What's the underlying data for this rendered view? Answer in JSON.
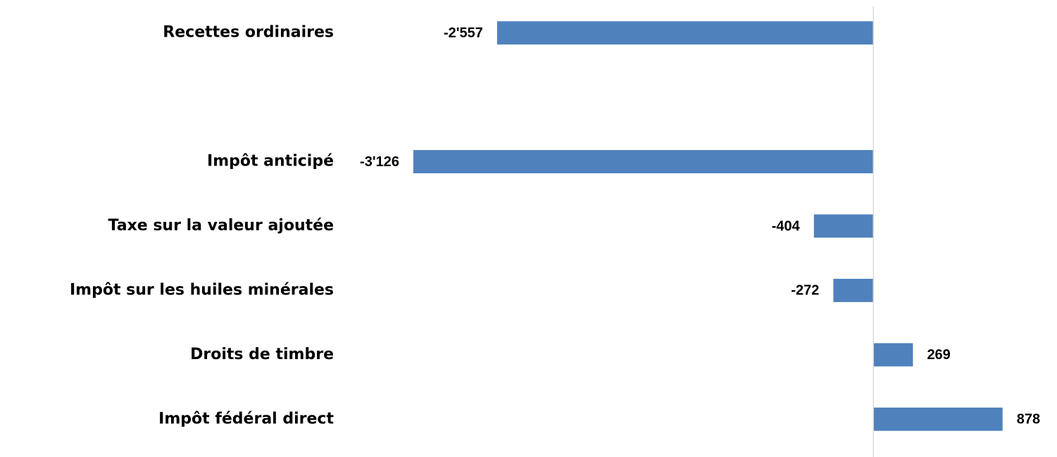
{
  "chart_data": {
    "type": "barh",
    "categories": [
      "Recettes ordinaires",
      null,
      "Impôt anticipé",
      "Taxe sur la valeur ajoutée",
      "Impôt sur les huiles minérales",
      "Droits de timbre",
      "Impôt fédéral direct"
    ],
    "values": [
      -2557,
      null,
      -3126,
      -404,
      -272,
      269,
      878
    ],
    "value_labels": [
      "-2'557",
      null,
      "-3'126",
      "-404",
      "-272",
      "269",
      "878"
    ],
    "color": "#4f81bd",
    "xlim": [
      -3200,
      1200
    ]
  }
}
